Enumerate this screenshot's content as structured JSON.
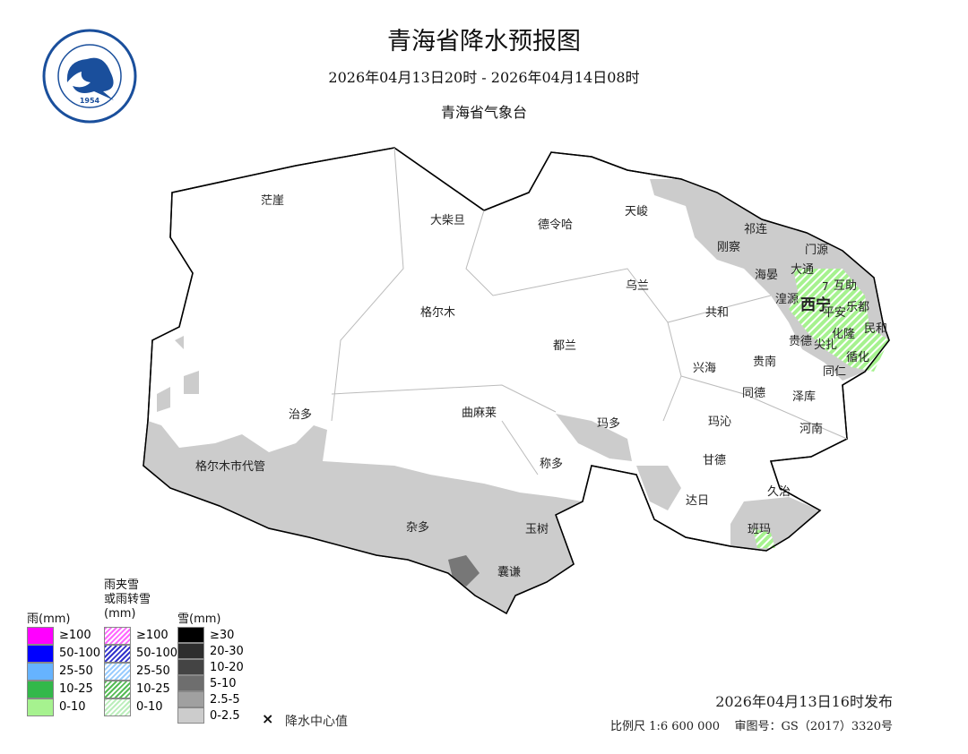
{
  "header": {
    "title": "青海省降水预报图",
    "period": "2026年04月13日20时 - 2026年04月14日08时",
    "issuer": "青海省气象台"
  },
  "logo": {
    "text_cn": "青海省气象台",
    "text_en": "QING HAI METEOROLOGICAL OBSERVATORY",
    "year": "1954",
    "color": "#1a4f9c"
  },
  "places": [
    "茫崖",
    "大柴旦",
    "德令哈",
    "天峻",
    "祁连",
    "刚察",
    "门源",
    "大通",
    "海晏",
    "互助",
    "湟源",
    "西宁",
    "平安",
    "乐都",
    "民和",
    "化隆",
    "贵德",
    "尖扎",
    "循化",
    "同仁",
    "乌兰",
    "共和",
    "格尔木",
    "都兰",
    "兴海",
    "贵南",
    "同德",
    "泽库",
    "河南",
    "治多",
    "曲麻莱",
    "玛多",
    "玛沁",
    "格尔木市代管",
    "称多",
    "甘德",
    "久治",
    "达日",
    "杂多",
    "玉树",
    "班玛",
    "囊谦"
  ],
  "center_value": "7",
  "legend": {
    "rain": {
      "title": "雨(mm)",
      "items": [
        {
          "label": "≥100",
          "color": "#ff00ff"
        },
        {
          "label": "50-100",
          "color": "#0000ff"
        },
        {
          "label": "25-50",
          "color": "#66b3ff"
        },
        {
          "label": "10-25",
          "color": "#33b84a"
        },
        {
          "label": "0-10",
          "color": "#a6f28f"
        }
      ]
    },
    "mix": {
      "title_lines": [
        "雨夹雪",
        "或雨转雪",
        "(mm)"
      ],
      "items": [
        {
          "label": "≥100",
          "color": "#ff66ff"
        },
        {
          "label": "50-100",
          "color": "#3333cc"
        },
        {
          "label": "25-50",
          "color": "#99ccff"
        },
        {
          "label": "10-25",
          "color": "#55bb55"
        },
        {
          "label": "0-10",
          "color": "#bbeebb"
        }
      ]
    },
    "snow": {
      "title": "雪(mm)",
      "items": [
        {
          "label": "≥30",
          "color": "#000000"
        },
        {
          "label": "20-30",
          "color": "#2e2e2e"
        },
        {
          "label": "10-20",
          "color": "#444444"
        },
        {
          "label": "5-10",
          "color": "#6e6e6e"
        },
        {
          "label": "2.5-5",
          "color": "#a0a0a0"
        },
        {
          "label": "0-2.5",
          "color": "#cccccc"
        }
      ]
    },
    "center_mark": "×",
    "center_label": "降水中心值"
  },
  "footer": {
    "issued": "2026年04月13日16时发布",
    "scale": "比例尺 1:6 600 000",
    "approval": "审图号：GS（2017）3320号"
  }
}
